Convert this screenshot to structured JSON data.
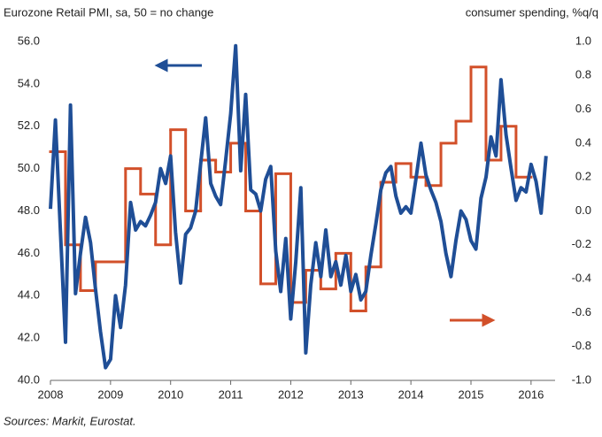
{
  "chart_data": {
    "type": "line",
    "title": "Eurozone Retail PMI, sa, 50 = no change",
    "y2_label": "consumer spending, %q/q",
    "source": "Sources: Markit, Eurostat.",
    "xlim": [
      2008,
      2016.4
    ],
    "xticks": [
      2008,
      2009,
      2010,
      2011,
      2012,
      2013,
      2014,
      2015,
      2016
    ],
    "ylim": [
      40,
      56
    ],
    "yticks": [
      {
        "value": 40,
        "label": "40.0"
      },
      {
        "value": 42,
        "label": "42.0"
      },
      {
        "value": 44,
        "label": "44.0"
      },
      {
        "value": 46,
        "label": "46.0"
      },
      {
        "value": 48,
        "label": "48.0"
      },
      {
        "value": 50,
        "label": "50.0"
      },
      {
        "value": 52,
        "label": "52.0"
      },
      {
        "value": 54,
        "label": "54.0"
      },
      {
        "value": 56,
        "label": "56.0"
      }
    ],
    "y2lim": [
      -1,
      1
    ],
    "y2ticks": [
      {
        "value": -1,
        "label": "-1.0"
      },
      {
        "value": -0.8,
        "label": "-0.8"
      },
      {
        "value": -0.6,
        "label": "-0.6"
      },
      {
        "value": -0.4,
        "label": "-0.4"
      },
      {
        "value": -0.2,
        "label": "-0.2"
      },
      {
        "value": 0,
        "label": "0.0"
      },
      {
        "value": 0.2,
        "label": "0.2"
      },
      {
        "value": 0.4,
        "label": "0.4"
      },
      {
        "value": 0.6,
        "label": "0.6"
      },
      {
        "value": 0.8,
        "label": "0.8"
      },
      {
        "value": 1,
        "label": "1.0"
      }
    ],
    "series": [
      {
        "color": "#1f4e96",
        "axis": "y",
        "x": [
          2008,
          2008.083,
          2008.167,
          2008.25,
          2008.333,
          2008.417,
          2008.5,
          2008.583,
          2008.667,
          2008.75,
          2008.833,
          2008.917,
          2009,
          2009.083,
          2009.167,
          2009.25,
          2009.333,
          2009.417,
          2009.5,
          2009.583,
          2009.667,
          2009.75,
          2009.833,
          2009.917,
          2010,
          2010.083,
          2010.167,
          2010.25,
          2010.333,
          2010.417,
          2010.5,
          2010.583,
          2010.667,
          2010.75,
          2010.833,
          2010.917,
          2011,
          2011.083,
          2011.167,
          2011.25,
          2011.333,
          2011.417,
          2011.5,
          2011.583,
          2011.667,
          2011.75,
          2011.833,
          2011.917,
          2012,
          2012.083,
          2012.167,
          2012.25,
          2012.333,
          2012.417,
          2012.5,
          2012.583,
          2012.667,
          2012.75,
          2012.833,
          2012.917,
          2013,
          2013.083,
          2013.167,
          2013.25,
          2013.333,
          2013.417,
          2013.5,
          2013.583,
          2013.667,
          2013.75,
          2013.833,
          2013.917,
          2014,
          2014.083,
          2014.167,
          2014.25,
          2014.333,
          2014.417,
          2014.5,
          2014.583,
          2014.667,
          2014.75,
          2014.833,
          2014.917,
          2015,
          2015.083,
          2015.167,
          2015.25,
          2015.333,
          2015.417,
          2015.5,
          2015.583,
          2015.667,
          2015.75,
          2015.833,
          2015.917,
          2016,
          2016.083,
          2016.167,
          2016.25
        ],
        "values": [
          48.1,
          52.3,
          47.0,
          41.8,
          53.0,
          44.1,
          46.0,
          47.7,
          46.5,
          44.3,
          42.3,
          40.6,
          41.0,
          44.0,
          42.5,
          44.5,
          48.4,
          47.1,
          47.5,
          47.3,
          47.8,
          48.4,
          50.0,
          49.3,
          50.6,
          47.0,
          44.6,
          46.9,
          47.2,
          48.0,
          50.2,
          52.4,
          49.3,
          48.7,
          48.3,
          50.4,
          52.6,
          55.8,
          49.9,
          53.5,
          49.0,
          48.8,
          48.0,
          49.5,
          50.1,
          46.1,
          44.2,
          46.7,
          42.9,
          45.6,
          49.1,
          41.3,
          44.5,
          46.5,
          44.9,
          47.1,
          44.9,
          45.6,
          44.5,
          45.9,
          44.2,
          45.0,
          43.8,
          44.2,
          45.9,
          47.4,
          49.0,
          49.8,
          50.1,
          48.7,
          47.9,
          48.2,
          47.9,
          49.5,
          51.2,
          49.7,
          49.0,
          48.4,
          47.5,
          46.0,
          44.9,
          46.6,
          48.0,
          47.6,
          46.6,
          46.2,
          48.6,
          49.6,
          51.5,
          50.6,
          54.2,
          51.6,
          50.0,
          48.5,
          49.1,
          48.9,
          50.2,
          49.4,
          47.9,
          50.6
        ]
      },
      {
        "color": "#d2502a",
        "axis": "y2",
        "step": 0.25,
        "x": [
          2008,
          2008.25,
          2008.5,
          2008.75,
          2009,
          2009.25,
          2009.5,
          2009.75,
          2010,
          2010.25,
          2010.5,
          2010.75,
          2011,
          2011.25,
          2011.5,
          2011.75,
          2012,
          2012.25,
          2012.5,
          2012.75,
          2013,
          2013.25,
          2013.5,
          2013.75,
          2014,
          2014.25,
          2014.5,
          2014.75,
          2015,
          2015.25,
          2015.5,
          2015.75
        ],
        "values": [
          0.35,
          -0.2,
          -0.47,
          -0.3,
          -0.3,
          0.25,
          0.1,
          -0.2,
          0.48,
          0.0,
          0.3,
          0.23,
          0.4,
          0.0,
          -0.43,
          0.22,
          -0.54,
          -0.35,
          -0.46,
          -0.25,
          -0.59,
          -0.33,
          0.17,
          0.28,
          0.2,
          0.15,
          0.4,
          0.53,
          0.85,
          0.3,
          0.5,
          0.2
        ]
      }
    ]
  }
}
